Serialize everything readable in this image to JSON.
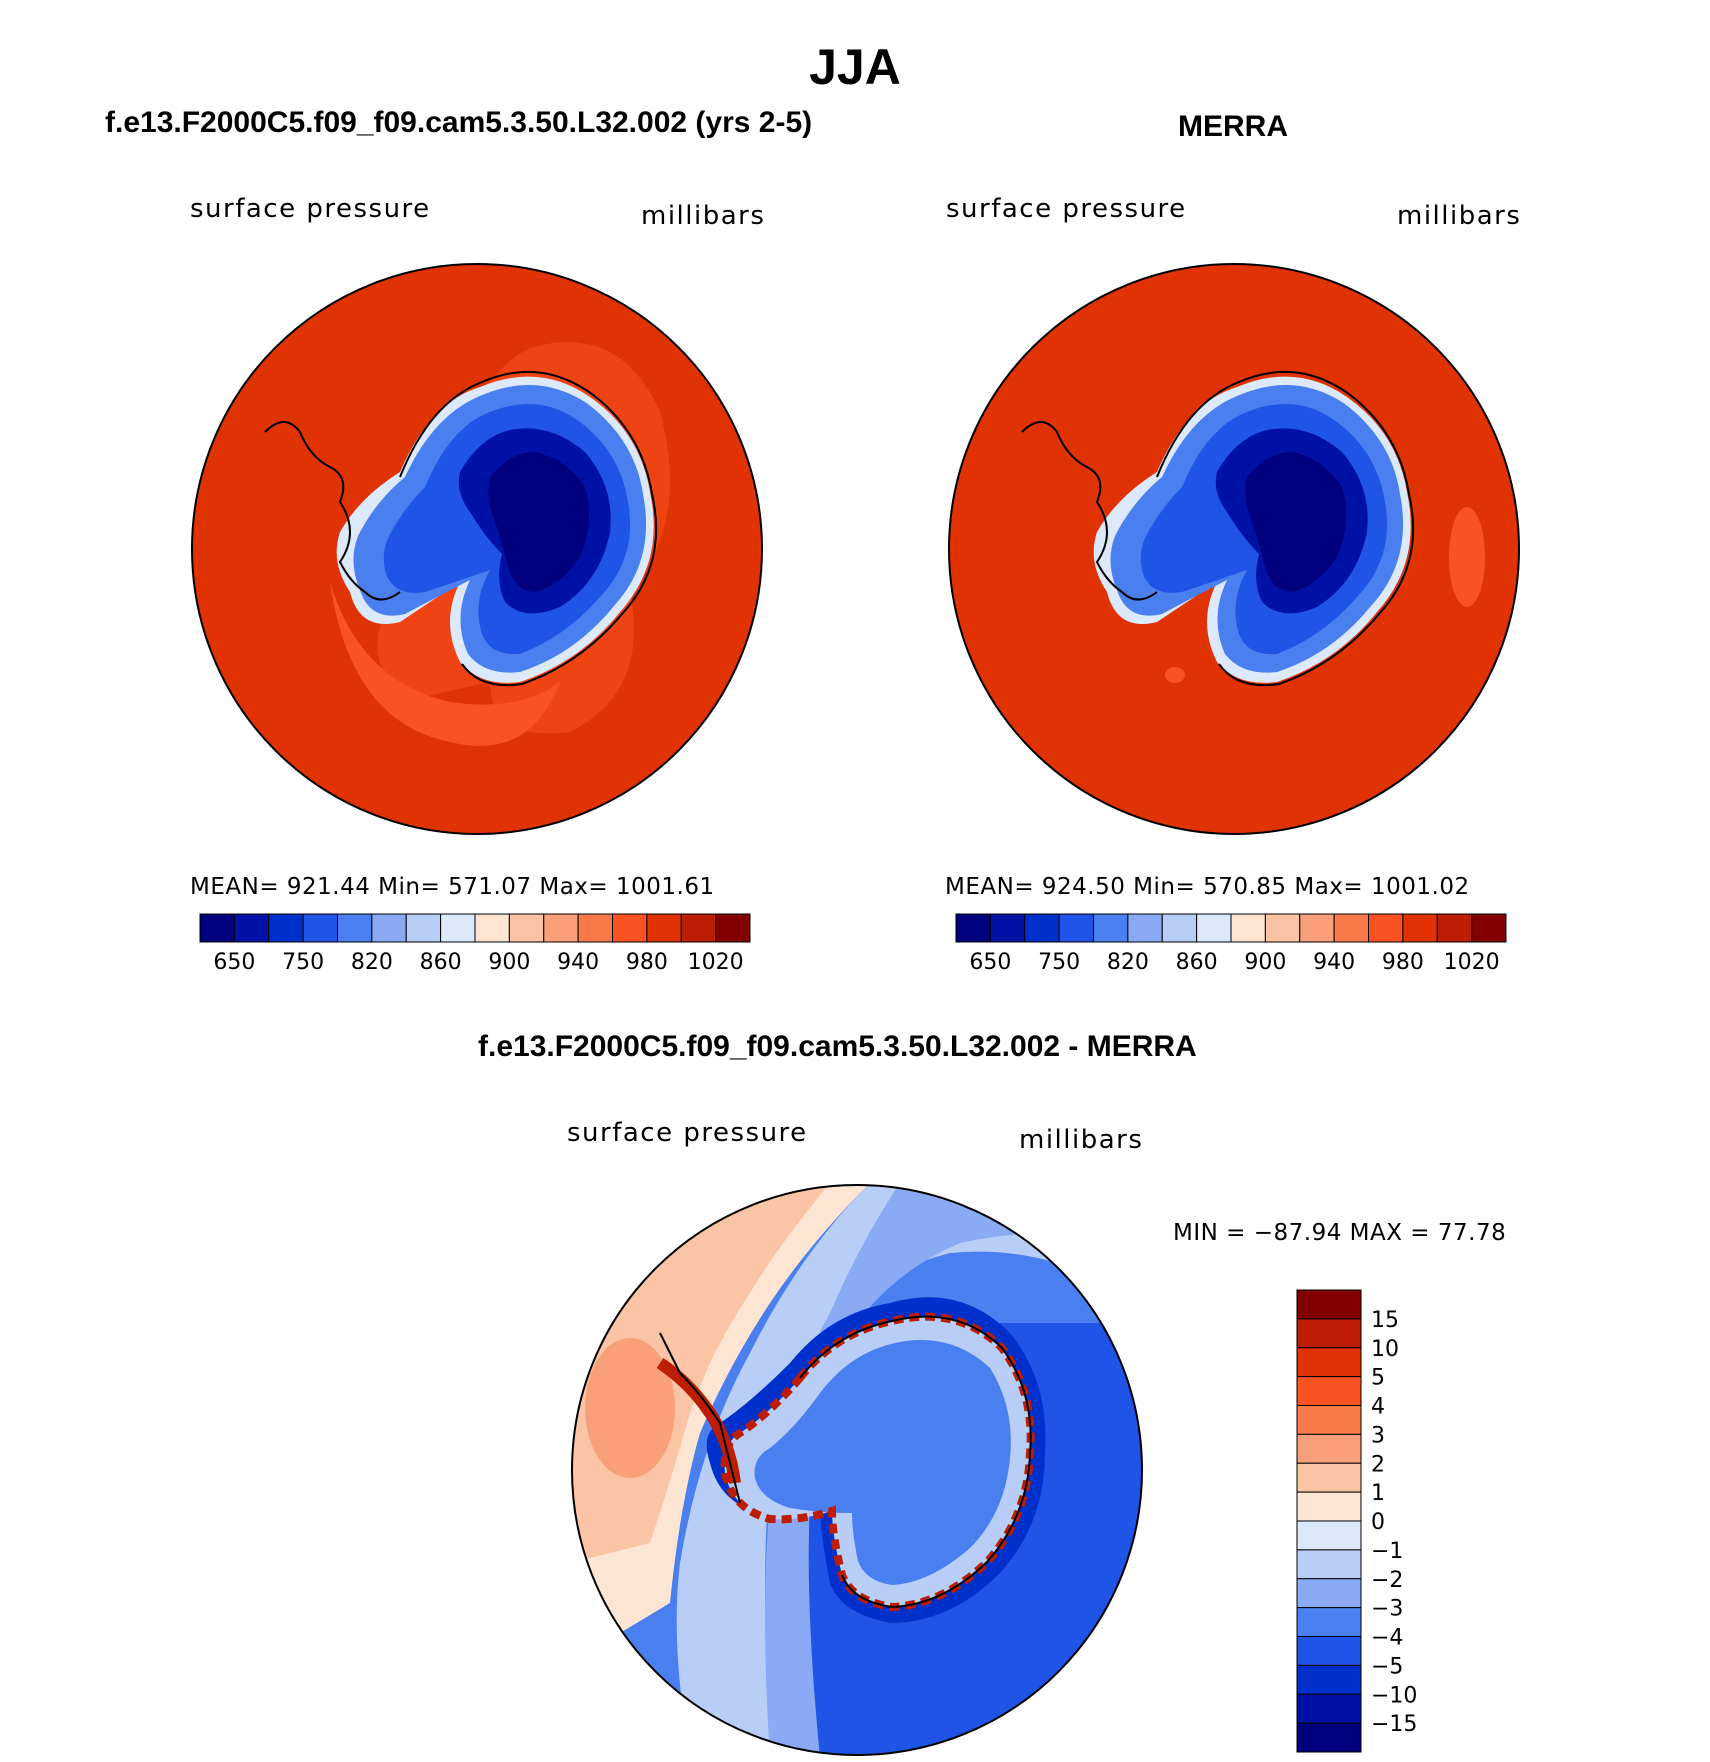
{
  "main_title": "JJA",
  "panels": {
    "model": {
      "title": "f.e13.F2000C5.f09_f09.cam5.3.50.L32.002 (yrs 2-5)",
      "variable": "surface pressure",
      "units": "millibars",
      "stats": "MEAN= 921.44   Min= 571.07   Max= 1001.61"
    },
    "obs": {
      "title": "MERRA",
      "variable": "surface pressure",
      "units": "millibars",
      "stats": "MEAN= 924.50   Min= 570.85   Max= 1001.02"
    },
    "diff": {
      "title": "f.e13.F2000C5.f09_f09.cam5.3.50.L32.002 - MERRA",
      "variable": "surface pressure",
      "units": "millibars",
      "stats": "MIN = −87.94 MAX =   77.78"
    }
  },
  "colorbar_abs": {
    "colors": [
      "#00007f",
      "#0012a6",
      "#0030cc",
      "#1f55e6",
      "#4a7ff0",
      "#8aaaf5",
      "#b8cef7",
      "#dce9fa",
      "#fde5d3",
      "#fbc4a5",
      "#f9a07a",
      "#fb7a4a",
      "#fb5222",
      "#e03202",
      "#bd1d02",
      "#830000"
    ],
    "tick_labels": [
      "650",
      "750",
      "820",
      "860",
      "900",
      "940",
      "980",
      "1020"
    ]
  },
  "colorbar_diff": {
    "colors": [
      "#820000",
      "#bd1d02",
      "#e03202",
      "#fb5222",
      "#fb7a4a",
      "#f9a07a",
      "#fbc4a5",
      "#fde5d3",
      "#dce9fa",
      "#b8cef7",
      "#8aaaf5",
      "#4a7ff0",
      "#1f55e6",
      "#0030cc",
      "#0012a6",
      "#00007f"
    ],
    "tick_labels": [
      "15",
      "10",
      "5",
      "4",
      "3",
      "2",
      "1",
      "0",
      "−1",
      "−2",
      "−3",
      "−4",
      "−5",
      "−10",
      "−15"
    ]
  },
  "map_colors": {
    "ocean_abs": "#e03202",
    "ocean_abs_light": "#fb5222",
    "land_low": "#00007f",
    "land_mid": "#0030cc",
    "land_edge": "#4a7ff0"
  }
}
